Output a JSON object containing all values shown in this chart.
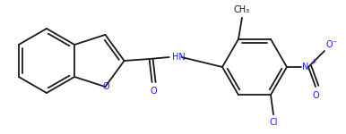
{
  "bg_color": "#ffffff",
  "line_color": "#1a1a1a",
  "text_color": "#1a1aff",
  "lw": 1.3,
  "figsize": [
    3.86,
    1.5
  ],
  "dpi": 100,
  "xlim": [
    0,
    386
  ],
  "ylim": [
    0,
    150
  ]
}
